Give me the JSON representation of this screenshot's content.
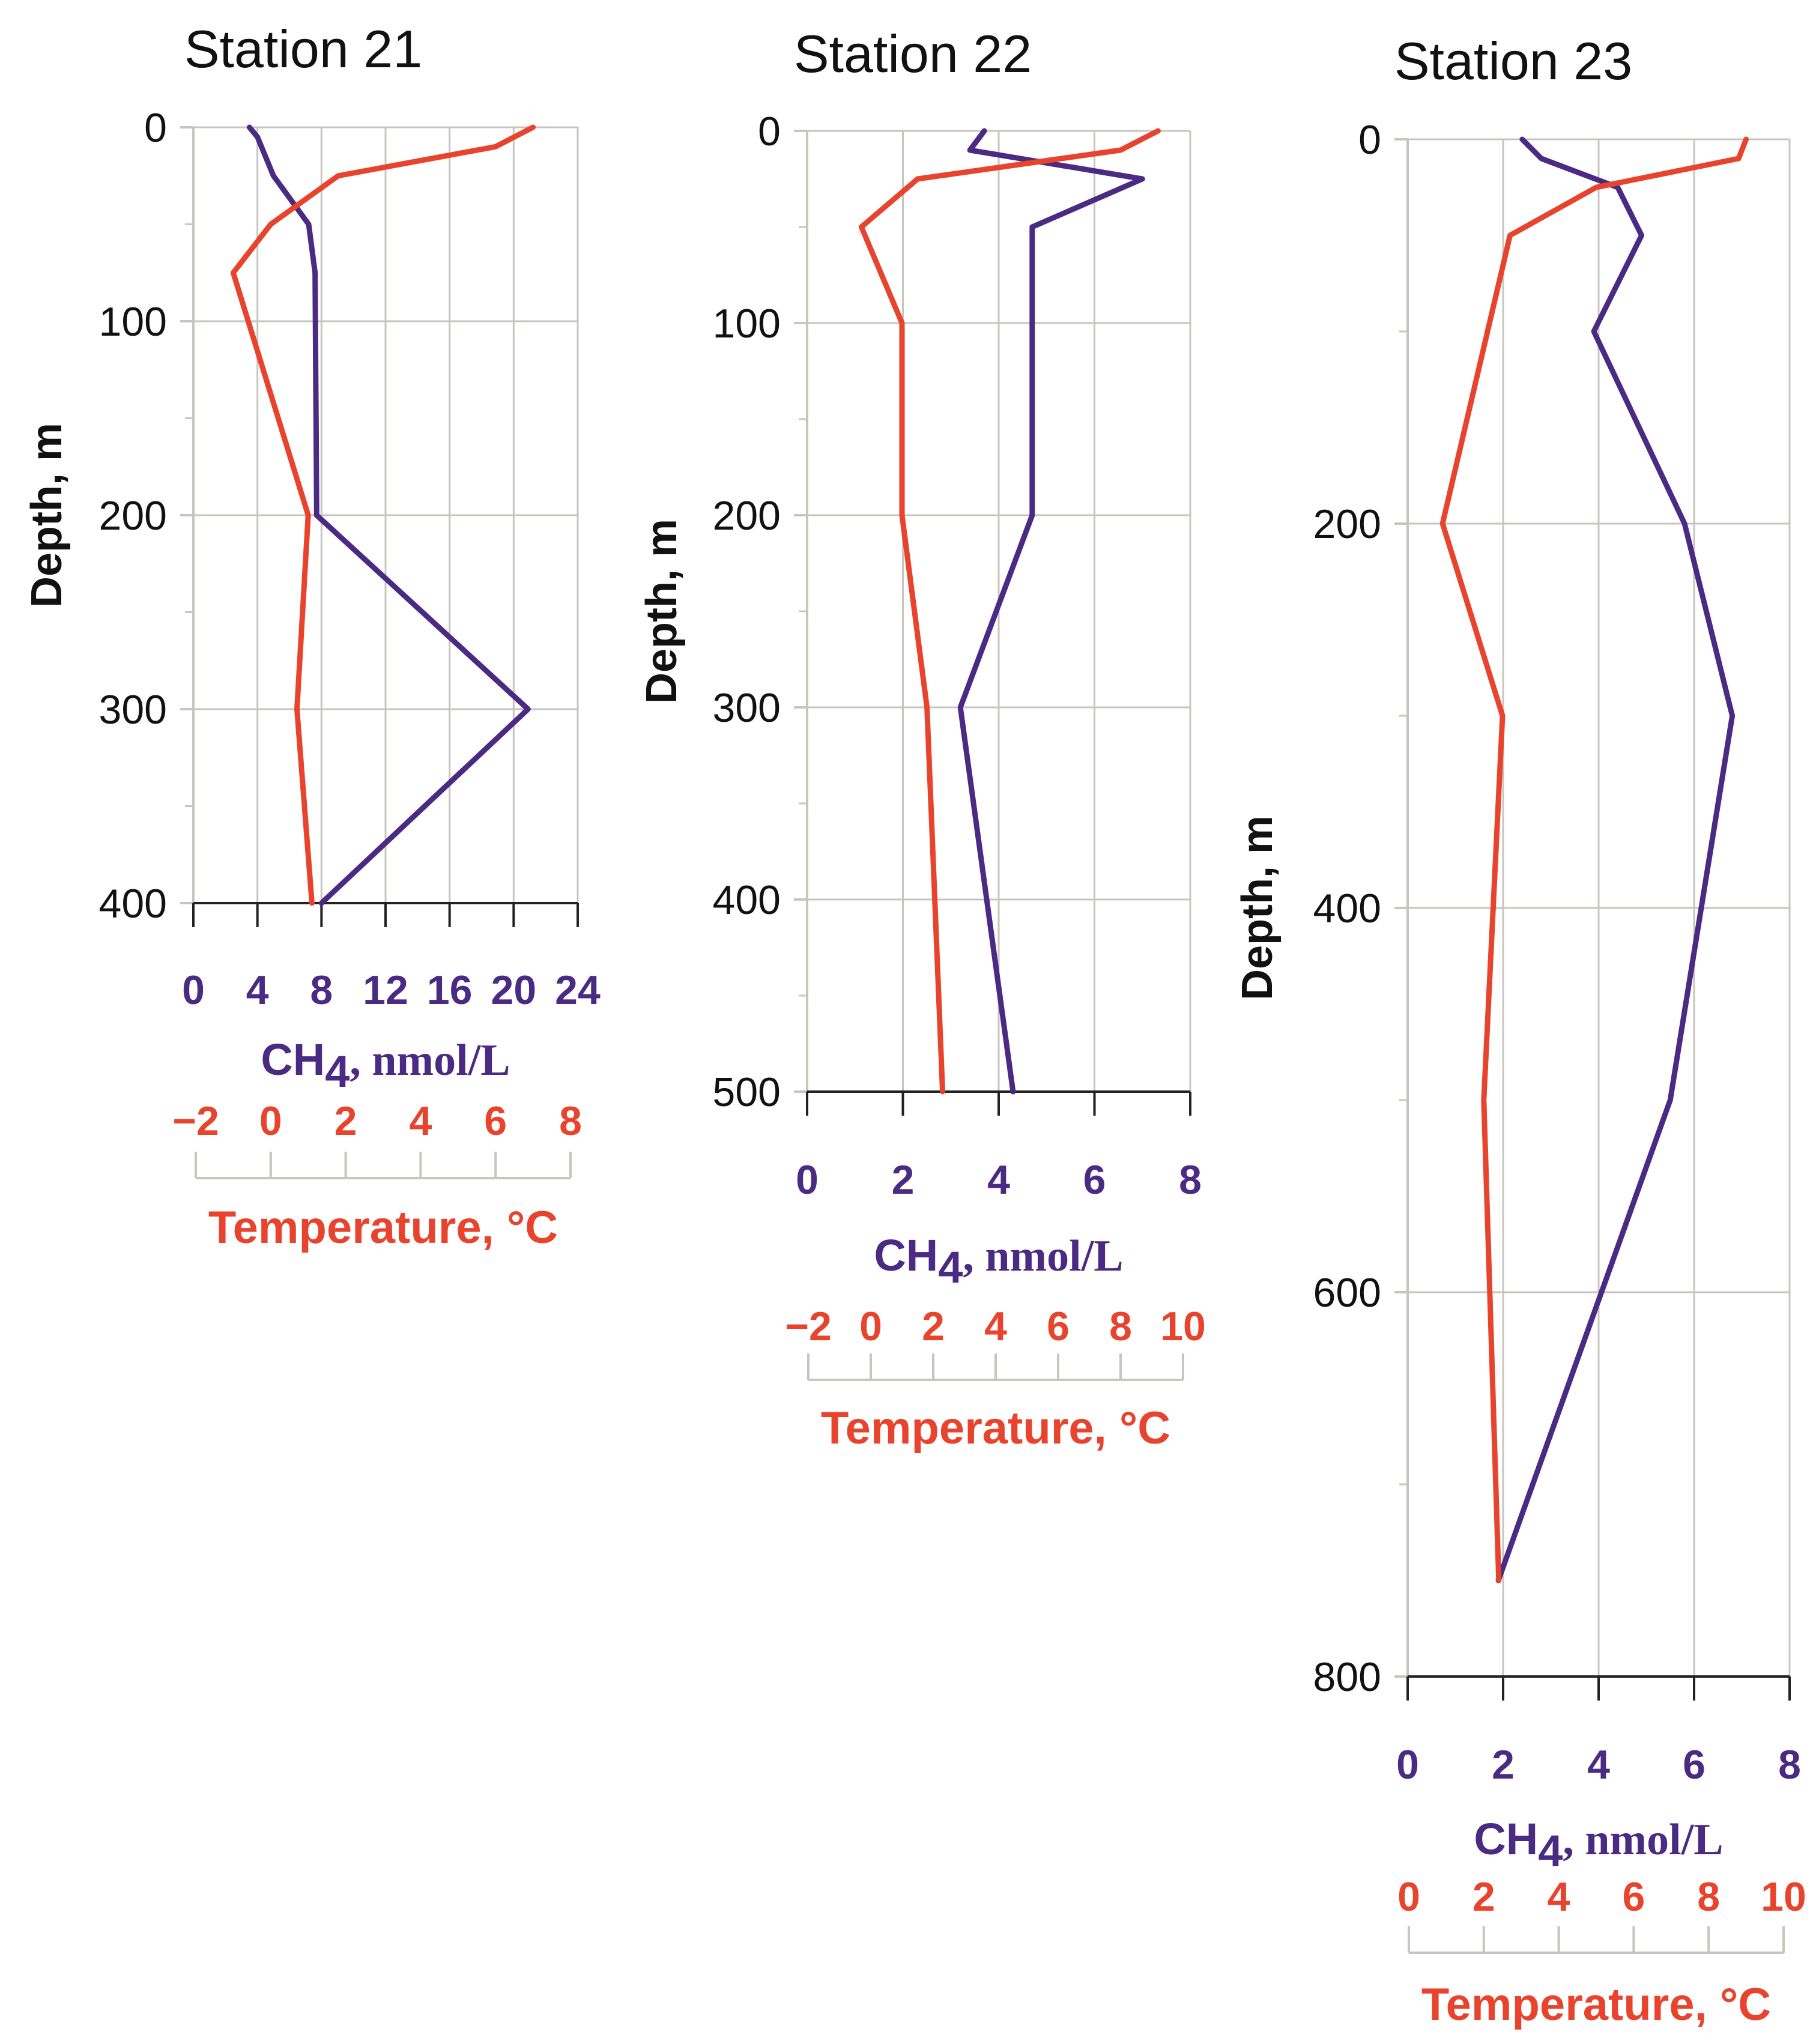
{
  "colors": {
    "ch4": "#4a2a82",
    "temperature": "#e8432d",
    "grid": "#c8c4bf",
    "axis": "#222222",
    "text": "#111111"
  },
  "chart_data": [
    {
      "type": "line",
      "title": "Station 21",
      "ylabel": "Depth, m",
      "ylim": [
        0,
        400
      ],
      "yticks": [
        0,
        100,
        200,
        300,
        400
      ],
      "ch4_axis": {
        "label_main": "CH",
        "label_sub": "4",
        "label_unit": ", nmol/L",
        "ticks": [
          0,
          4,
          8,
          12,
          16,
          20,
          24
        ],
        "range": [
          0,
          24
        ]
      },
      "temp_axis": {
        "label": "Temperature, °C",
        "ticks": [
          "−2",
          "0",
          "2",
          "4",
          "6",
          "8"
        ],
        "range": [
          -2,
          8
        ]
      },
      "series": [
        {
          "name": "CH4",
          "depth": [
            0,
            5,
            25,
            50,
            75,
            200,
            300,
            400
          ],
          "values": [
            3.5,
            4.0,
            5.0,
            7.2,
            7.6,
            7.7,
            20.9,
            8.0
          ]
        },
        {
          "name": "Temperature",
          "depth": [
            0,
            10,
            25,
            50,
            75,
            200,
            300,
            400
          ],
          "values": [
            7.0,
            6.0,
            1.8,
            0.0,
            -1.0,
            1.0,
            0.7,
            1.1
          ]
        }
      ]
    },
    {
      "type": "line",
      "title": "Station 22",
      "ylabel": "Depth, m",
      "ylim": [
        0,
        500
      ],
      "yticks": [
        0,
        100,
        200,
        300,
        400,
        500
      ],
      "ch4_axis": {
        "label_main": "CH",
        "label_sub": "4",
        "label_unit": ", nmol/L",
        "ticks": [
          0,
          2,
          4,
          6,
          8
        ],
        "range": [
          0,
          8
        ]
      },
      "temp_axis": {
        "label": "Temperature, °C",
        "ticks": [
          "−2",
          "0",
          "2",
          "4",
          "6",
          "8",
          "10"
        ],
        "range": [
          -2,
          10
        ]
      },
      "series": [
        {
          "name": "CH4",
          "depth": [
            0,
            10,
            25,
            50,
            100,
            200,
            300,
            500
          ],
          "values": [
            3.7,
            3.4,
            7.0,
            4.7,
            4.7,
            4.7,
            3.2,
            4.3
          ]
        },
        {
          "name": "Temperature",
          "depth": [
            0,
            10,
            25,
            50,
            100,
            200,
            300,
            500
          ],
          "values": [
            9.2,
            8.0,
            1.5,
            -0.3,
            1.0,
            1.0,
            1.8,
            2.3
          ]
        }
      ]
    },
    {
      "type": "line",
      "title": "Station 23",
      "ylabel": "Depth, m",
      "ylim": [
        0,
        800
      ],
      "yticks": [
        0,
        200,
        400,
        600,
        800
      ],
      "ch4_axis": {
        "label_main": "CH",
        "label_sub": "4",
        "label_unit": ", nmol/L",
        "ticks": [
          0,
          2,
          4,
          6,
          8
        ],
        "range": [
          0,
          8
        ]
      },
      "temp_axis": {
        "label": "Temperature, °C",
        "ticks": [
          "0",
          "2",
          "4",
          "6",
          "8",
          "10"
        ],
        "range": [
          0,
          10
        ]
      },
      "series": [
        {
          "name": "CH4",
          "depth": [
            0,
            10,
            25,
            50,
            100,
            200,
            300,
            500,
            750
          ],
          "values": [
            2.4,
            2.8,
            4.4,
            4.9,
            3.9,
            5.8,
            6.8,
            5.5,
            1.9
          ]
        },
        {
          "name": "Temperature",
          "depth": [
            0,
            10,
            25,
            50,
            100,
            200,
            300,
            500,
            750
          ],
          "values": [
            9.0,
            8.8,
            5.0,
            2.7,
            2.1,
            0.9,
            2.5,
            2.0,
            2.4
          ]
        }
      ]
    }
  ]
}
